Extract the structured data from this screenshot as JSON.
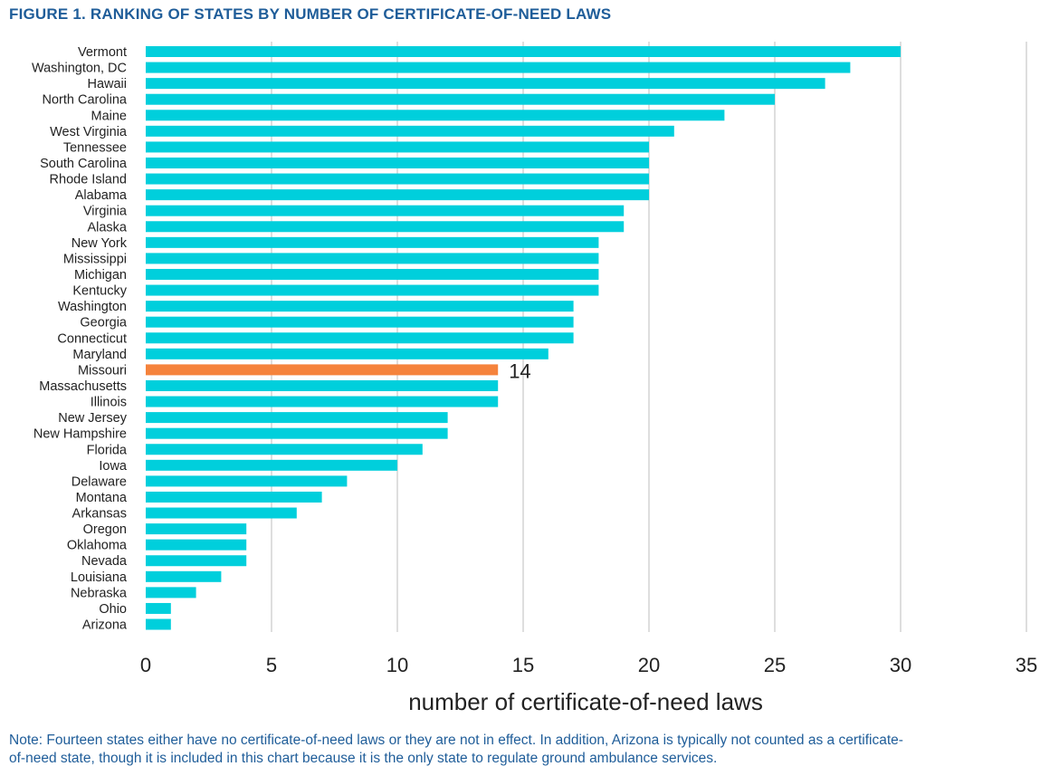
{
  "figure_title": "FIGURE 1. RANKING OF STATES BY NUMBER OF CERTIFICATE-OF-NEED LAWS",
  "note": "Note: Fourteen states either have no certificate-of-need laws or they are not in effect. In addition, Arizona is typically not counted as a certificate-of-need state, though it is included in this chart because it is the only state to regulate ground ambulance services.",
  "colors": {
    "bar": "#00cfdc",
    "highlight": "#f5833c",
    "title": "#1f5d99"
  },
  "chart_data": {
    "type": "bar",
    "orientation": "horizontal",
    "categories": [
      "Vermont",
      "Washington, DC",
      "Hawaii",
      "North Carolina",
      "Maine",
      "West Virginia",
      "Tennessee",
      "South Carolina",
      "Rhode Island",
      "Alabama",
      "Virginia",
      "Alaska",
      "New York",
      "Mississippi",
      "Michigan",
      "Kentucky",
      "Washington",
      "Georgia",
      "Connecticut",
      "Maryland",
      "Missouri",
      "Massachusetts",
      "Illinois",
      "New Jersey",
      "New Hampshire",
      "Florida",
      "Iowa",
      "Delaware",
      "Montana",
      "Arkansas",
      "Oregon",
      "Oklahoma",
      "Nevada",
      "Louisiana",
      "Nebraska",
      "Ohio",
      "Arizona"
    ],
    "values": [
      30,
      28,
      27,
      25,
      23,
      21,
      20,
      20,
      20,
      20,
      19,
      19,
      18,
      18,
      18,
      18,
      17,
      17,
      17,
      16,
      14,
      14,
      14,
      12,
      12,
      11,
      10,
      8,
      7,
      6,
      4,
      4,
      4,
      3,
      2,
      1,
      1
    ],
    "highlight": "Missouri",
    "data_labels": [
      {
        "category": "Missouri",
        "text": "14"
      }
    ],
    "xlabel": "number of certificate-of-need laws",
    "xlim": [
      0,
      35
    ],
    "xticks": [
      0,
      5,
      10,
      15,
      20,
      25,
      30,
      35
    ],
    "grid": "vertical",
    "legend": "none"
  }
}
